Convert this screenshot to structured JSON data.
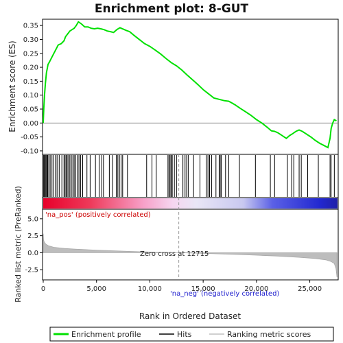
{
  "chart_data": [
    {
      "type": "line",
      "title": "Enrichment plot: 8-GUT",
      "ylabel": "Enrichment score (ES)",
      "xlim": [
        0,
        27600
      ],
      "ylim": [
        -0.11,
        0.37
      ],
      "yticks": [
        -0.1,
        -0.05,
        0.0,
        0.05,
        0.1,
        0.15,
        0.2,
        0.25,
        0.3,
        0.35
      ],
      "ytick_labels": [
        "-0.10",
        "-0.05",
        "0.00",
        "0.05",
        "0.10",
        "0.15",
        "0.20",
        "0.25",
        "0.30",
        "0.35"
      ],
      "line_color": "#00e000",
      "series": [
        {
          "name": "Enrichment profile",
          "x": [
            0,
            50,
            120,
            200,
            300,
            450,
            600,
            800,
            1000,
            1200,
            1400,
            1700,
            1950,
            2100,
            2300,
            2500,
            2700,
            2900,
            3100,
            3300,
            3600,
            3900,
            4200,
            4500,
            4800,
            5100,
            5400,
            5700,
            6000,
            6300,
            6600,
            6900,
            7200,
            7500,
            7800,
            8100,
            8500,
            9000,
            9500,
            10000,
            10500,
            11000,
            11500,
            12000,
            12500,
            13000,
            13500,
            14000,
            14500,
            15000,
            15500,
            16000,
            16500,
            17000,
            17400,
            17700,
            18000,
            18500,
            19000,
            19500,
            20000,
            20500,
            21000,
            21400,
            21700,
            22000,
            22400,
            22800,
            23100,
            23400,
            23700,
            24000,
            24300,
            24700,
            25100,
            25500,
            25900,
            26300,
            26700,
            26900,
            27000,
            27150,
            27300,
            27500
          ],
          "y": [
            0.0,
            0.05,
            0.1,
            0.14,
            0.18,
            0.21,
            0.22,
            0.235,
            0.25,
            0.265,
            0.28,
            0.285,
            0.295,
            0.31,
            0.32,
            0.33,
            0.335,
            0.34,
            0.35,
            0.363,
            0.355,
            0.345,
            0.345,
            0.34,
            0.338,
            0.34,
            0.338,
            0.335,
            0.33,
            0.328,
            0.325,
            0.335,
            0.342,
            0.337,
            0.332,
            0.328,
            0.315,
            0.3,
            0.285,
            0.275,
            0.262,
            0.248,
            0.232,
            0.217,
            0.205,
            0.19,
            0.172,
            0.155,
            0.138,
            0.12,
            0.105,
            0.09,
            0.085,
            0.08,
            0.078,
            0.072,
            0.065,
            0.052,
            0.04,
            0.027,
            0.012,
            0.0,
            -0.015,
            -0.028,
            -0.03,
            -0.035,
            -0.045,
            -0.055,
            -0.045,
            -0.038,
            -0.03,
            -0.025,
            -0.03,
            -0.04,
            -0.05,
            -0.062,
            -0.072,
            -0.08,
            -0.088,
            -0.055,
            -0.02,
            0.0,
            0.012,
            0.008
          ]
        }
      ]
    },
    {
      "type": "scatter",
      "hits_legend": "Hits",
      "hit_positions": [
        40,
        110,
        180,
        260,
        340,
        420,
        520,
        650,
        820,
        980,
        1150,
        1300,
        1500,
        1750,
        1950,
        2050,
        2150,
        2250,
        2380,
        2500,
        2640,
        2780,
        2900,
        3050,
        3200,
        3350,
        3500,
        3700,
        4100,
        4400,
        4900,
        5250,
        5500,
        5650,
        6200,
        6500,
        6850,
        7000,
        7150,
        7300,
        7450,
        7900,
        9700,
        10200,
        10600,
        11700,
        11800,
        11900,
        12000,
        12100,
        12300,
        12500,
        13100,
        13300,
        13450,
        13600,
        14100,
        14700,
        15300,
        15450,
        15600,
        15800,
        16200,
        16500,
        16600,
        16700,
        17100,
        17400,
        18400,
        19900,
        21300,
        21700,
        22900,
        23300,
        23500,
        24000,
        24200,
        24800,
        25800,
        26900,
        27000,
        27300
      ]
    },
    {
      "type": "area",
      "ylabel": "Ranked list metric (PreRanked)",
      "xlabel": "Rank in Ordered Dataset",
      "xlim": [
        0,
        27600
      ],
      "ylim": [
        -3.9,
        6.3
      ],
      "yticks": [
        -2.5,
        0.0,
        2.5,
        5.0
      ],
      "ytick_labels": [
        "-2.5",
        "0.0",
        "2.5",
        "5.0"
      ],
      "xticks": [
        0,
        5000,
        10000,
        15000,
        20000,
        25000
      ],
      "xtick_labels": [
        "0",
        "5,000",
        "10,000",
        "15,000",
        "20,000",
        "25,000"
      ],
      "zero_cross": 12715,
      "zero_cross_label": "Zero cross at 12715",
      "pos_label": "'na_pos' (positively correlated)",
      "neg_label": "'na_neg' (negatively correlated)",
      "series": [
        {
          "name": "Ranking metric scores",
          "x": [
            0,
            30,
            100,
            250,
            500,
            1000,
            2000,
            3000,
            5000,
            8000,
            10000,
            12715,
            15000,
            18000,
            20000,
            22000,
            24000,
            25500,
            26500,
            27000,
            27300,
            27450,
            27550
          ],
          "y": [
            2.8,
            1.9,
            1.55,
            1.25,
            1.02,
            0.8,
            0.62,
            0.52,
            0.38,
            0.2,
            0.1,
            0.0,
            -0.1,
            -0.25,
            -0.37,
            -0.5,
            -0.68,
            -0.85,
            -1.05,
            -1.3,
            -1.6,
            -2.3,
            -3.6
          ]
        }
      ]
    }
  ],
  "legend": {
    "items": [
      "Enrichment profile",
      "Hits",
      "Ranking metric scores"
    ],
    "colors": [
      "#00e000",
      "#000000",
      "#c0c0c0"
    ]
  }
}
